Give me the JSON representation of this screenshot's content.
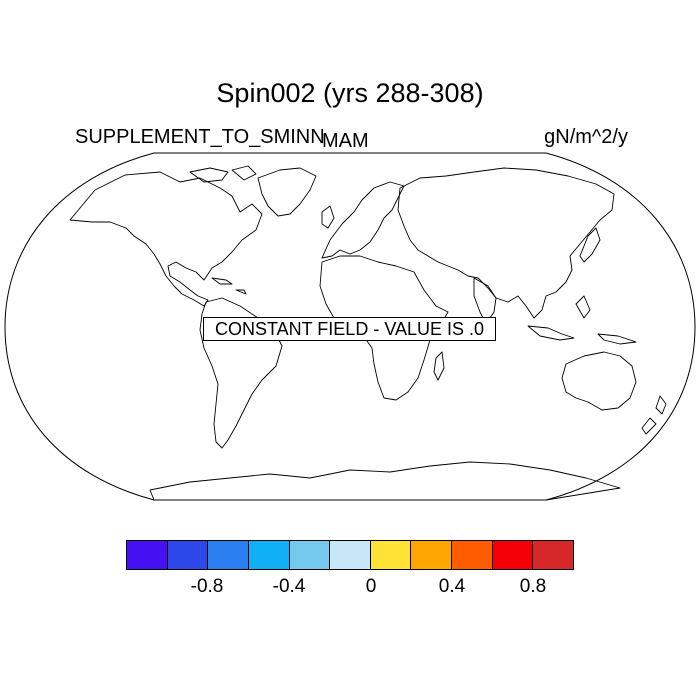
{
  "title": "Spin002 (yrs 288-308)",
  "left_label": "SUPPLEMENT_TO_SMINN",
  "center_label": "MAM",
  "right_label": "gN/m^2/y",
  "annotation": "CONSTANT FIELD - VALUE IS .0",
  "map": {
    "projection": "Robinson",
    "region": "global",
    "outline_color": "#000000",
    "fill": "none"
  },
  "colorbar": {
    "colors": [
      "#4510f2",
      "#2c48e8",
      "#2a7ef0",
      "#0fb0f5",
      "#75c8ee",
      "#c7e6f8",
      "#ffe236",
      "#ffa600",
      "#ff5c00",
      "#f50007",
      "#d62828"
    ],
    "tick_labels": [
      "-0.8",
      "-0.4",
      "0",
      "0.4",
      "0.8"
    ]
  }
}
